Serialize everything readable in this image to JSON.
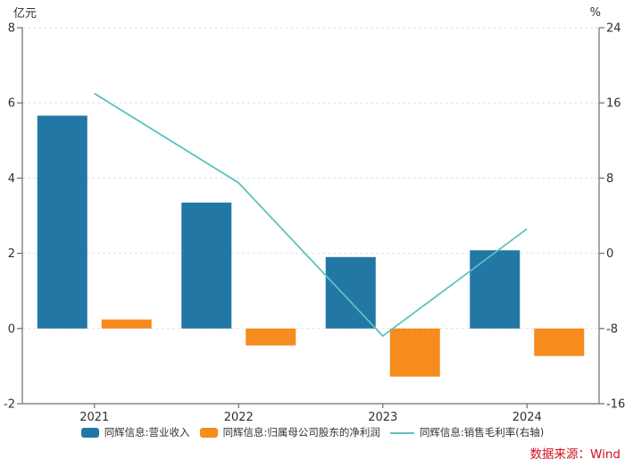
{
  "chart_data": {
    "type": "combo",
    "categories": [
      "2021",
      "2022",
      "2023",
      "2024"
    ],
    "series": [
      {
        "name": "同辉信息:营业收入",
        "type": "bar",
        "axis": "left",
        "color": "#2377a4",
        "values": [
          5.66,
          3.35,
          1.9,
          2.08
        ]
      },
      {
        "name": "同辉信息:归属母公司股东的净利润",
        "type": "bar",
        "axis": "left",
        "color": "#f68b1e",
        "values": [
          0.24,
          -0.45,
          -1.28,
          -0.73
        ]
      },
      {
        "name": "同辉信息:销售毛利率(右轴)",
        "type": "line",
        "axis": "right",
        "color": "#5cc2be",
        "values": [
          17.0,
          7.5,
          -8.8,
          2.6
        ]
      }
    ],
    "left_axis": {
      "title": "亿元",
      "min": -2,
      "max": 8,
      "ticks": [
        8,
        6,
        4,
        2,
        0,
        -2
      ]
    },
    "right_axis": {
      "title": "%",
      "min": -16,
      "max": 24,
      "ticks": [
        24,
        16,
        8,
        0,
        -8,
        -16
      ]
    },
    "grid": true,
    "legend_position": "bottom"
  },
  "source": {
    "label": "数据来源：Wind",
    "color": "#d0121f"
  },
  "colors": {
    "background": "#ffffff",
    "axis": "#6e6e6e",
    "grid": "#e0e0e0",
    "tick_label": "#303030",
    "legend_text": "#333333"
  }
}
